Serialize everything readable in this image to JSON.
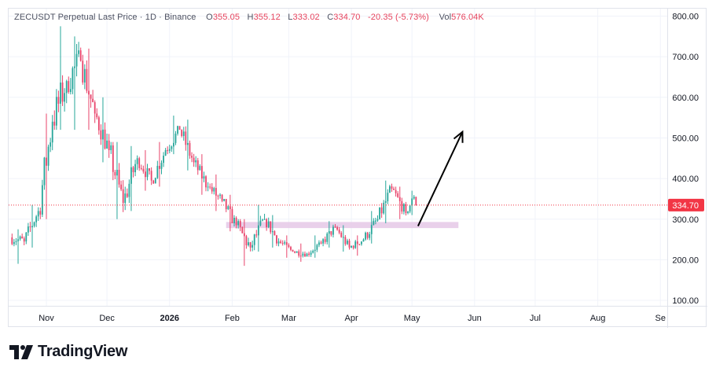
{
  "legend": {
    "symbol": "ZECUSDT Perpetual Last Price · 1D · Binance",
    "open_label": "O",
    "open": "355.05",
    "high_label": "H",
    "high": "355.12",
    "low_label": "L",
    "low": "333.02",
    "close_label": "C",
    "close": "334.70",
    "change": "-20.35 (-5.73%)",
    "vol_label": "Vol",
    "vol": "576.04K"
  },
  "last_price_label": "334.70",
  "brand": "TradingView",
  "colors": {
    "up": "#26a69a",
    "down": "#e8436a",
    "zone": "#e5c8e6",
    "arrow": "#000000",
    "last": "#f23645"
  },
  "chart_data": {
    "type": "candlestick",
    "title": "ZECUSDT Perpetual Last Price · 1D · Binance",
    "y_ticks": [
      "800.00",
      "700.00",
      "600.00",
      "500.00",
      "400.00",
      "300.00",
      "200.00",
      "100.00"
    ],
    "ylim": [
      90,
      820
    ],
    "x_ticks": [
      "Nov",
      "Dec",
      "2026",
      "Feb",
      "Mar",
      "Apr",
      "May",
      "Jun",
      "Jul",
      "Aug",
      "Se"
    ],
    "last_price": 334.7,
    "weekly_ohlc": [
      {
        "week_start": "2025-10-15",
        "open": 255,
        "high": 275,
        "low": 190,
        "close": 245
      },
      {
        "week_start": "2025-10-22",
        "open": 245,
        "high": 335,
        "low": 230,
        "close": 320
      },
      {
        "week_start": "2025-10-29",
        "open": 320,
        "high": 560,
        "low": 300,
        "close": 540
      },
      {
        "week_start": "2025-11-05",
        "open": 540,
        "high": 775,
        "low": 520,
        "close": 640
      },
      {
        "week_start": "2025-11-12",
        "open": 640,
        "high": 750,
        "low": 520,
        "close": 690
      },
      {
        "week_start": "2025-11-19",
        "open": 690,
        "high": 720,
        "low": 520,
        "close": 560
      },
      {
        "week_start": "2025-11-26",
        "open": 560,
        "high": 600,
        "low": 440,
        "close": 470
      },
      {
        "week_start": "2025-12-03",
        "open": 470,
        "high": 490,
        "low": 300,
        "close": 340
      },
      {
        "week_start": "2025-12-10",
        "open": 340,
        "high": 480,
        "low": 320,
        "close": 450
      },
      {
        "week_start": "2025-12-17",
        "open": 450,
        "high": 470,
        "low": 370,
        "close": 395
      },
      {
        "week_start": "2025-12-24",
        "open": 395,
        "high": 490,
        "low": 380,
        "close": 470
      },
      {
        "week_start": "2025-12-31",
        "open": 470,
        "high": 555,
        "low": 460,
        "close": 520
      },
      {
        "week_start": "2026-01-07",
        "open": 520,
        "high": 545,
        "low": 420,
        "close": 440
      },
      {
        "week_start": "2026-01-14",
        "open": 440,
        "high": 460,
        "low": 360,
        "close": 380
      },
      {
        "week_start": "2026-01-21",
        "open": 380,
        "high": 410,
        "low": 320,
        "close": 345
      },
      {
        "week_start": "2026-01-28",
        "open": 345,
        "high": 360,
        "low": 270,
        "close": 285
      },
      {
        "week_start": "2026-02-04",
        "open": 285,
        "high": 300,
        "low": 185,
        "close": 230
      },
      {
        "week_start": "2026-02-11",
        "open": 230,
        "high": 335,
        "low": 220,
        "close": 300
      },
      {
        "week_start": "2026-02-18",
        "open": 300,
        "high": 310,
        "low": 230,
        "close": 245
      },
      {
        "week_start": "2026-02-25",
        "open": 245,
        "high": 260,
        "low": 205,
        "close": 220
      },
      {
        "week_start": "2026-03-04",
        "open": 220,
        "high": 240,
        "low": 195,
        "close": 215
      },
      {
        "week_start": "2026-03-11",
        "open": 215,
        "high": 260,
        "low": 205,
        "close": 240
      },
      {
        "week_start": "2026-03-18",
        "open": 240,
        "high": 295,
        "low": 230,
        "close": 280
      },
      {
        "week_start": "2026-03-25",
        "open": 280,
        "high": 285,
        "low": 220,
        "close": 230
      },
      {
        "week_start": "2026-04-01",
        "open": 230,
        "high": 260,
        "low": 210,
        "close": 250
      },
      {
        "week_start": "2026-04-08",
        "open": 250,
        "high": 320,
        "low": 240,
        "close": 300
      },
      {
        "week_start": "2026-04-15",
        "open": 300,
        "high": 395,
        "low": 290,
        "close": 375
      },
      {
        "week_start": "2026-04-22",
        "open": 375,
        "high": 380,
        "low": 300,
        "close": 315
      },
      {
        "week_start": "2026-04-29",
        "open": 315,
        "high": 370,
        "low": 310,
        "close": 355
      },
      {
        "week_start": "2026-05-03",
        "open": 355.05,
        "high": 355.12,
        "low": 333.02,
        "close": 334.7
      }
    ],
    "annotations": {
      "support_zone": {
        "from": "2026-01-29",
        "to": "2026-05-24",
        "low": 278,
        "high": 293
      },
      "arrow": {
        "from": {
          "date": "2026-05-04",
          "price": 283
        },
        "to": {
          "date": "2026-05-26",
          "price": 515
        }
      }
    }
  }
}
